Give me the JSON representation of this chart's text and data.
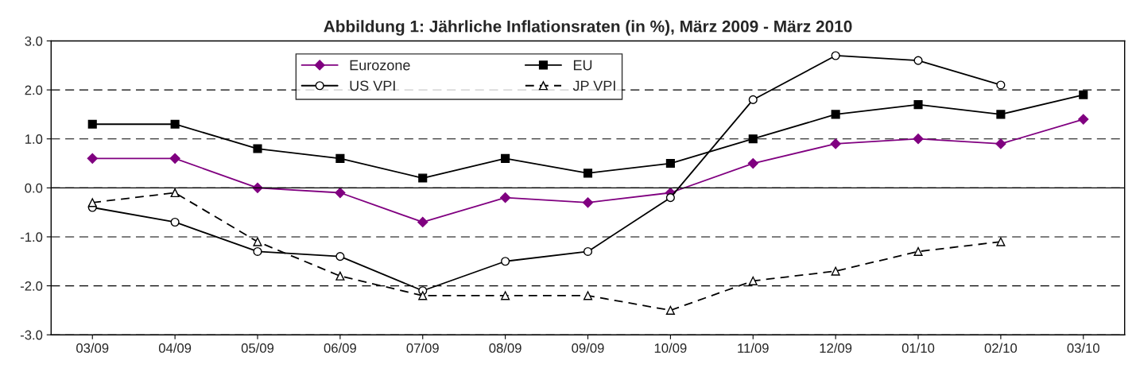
{
  "chart_data": {
    "type": "line",
    "title": "Abbildung 1: Jährliche Inflationsraten (in %), März 2009 - März 2010",
    "categories": [
      "03/09",
      "04/09",
      "05/09",
      "06/09",
      "07/09",
      "08/09",
      "09/09",
      "10/09",
      "11/09",
      "12/09",
      "01/10",
      "02/10",
      "03/10"
    ],
    "series": [
      {
        "name": "Eurozone",
        "color": "#800080",
        "marker": "diamond",
        "line_style": "solid",
        "values": [
          0.6,
          0.6,
          0.0,
          -0.1,
          -0.7,
          -0.2,
          -0.3,
          -0.1,
          0.5,
          0.9,
          1.0,
          0.9,
          1.4
        ]
      },
      {
        "name": "EU",
        "color": "#000000",
        "marker": "square",
        "line_style": "solid",
        "values": [
          1.3,
          1.3,
          0.8,
          0.6,
          0.2,
          0.6,
          0.3,
          0.5,
          1.0,
          1.5,
          1.7,
          1.5,
          1.9
        ]
      },
      {
        "name": "US VPI",
        "color": "#000000",
        "marker": "circle",
        "line_style": "solid",
        "values": [
          -0.4,
          -0.7,
          -1.3,
          -1.4,
          -2.1,
          -1.5,
          -1.3,
          -0.2,
          1.8,
          2.7,
          2.6,
          2.1,
          null
        ]
      },
      {
        "name": "JP VPI",
        "color": "#000000",
        "marker": "triangle",
        "line_style": "dashed",
        "values": [
          -0.3,
          -0.1,
          -1.1,
          -1.8,
          -2.2,
          -2.2,
          -2.2,
          -2.5,
          -1.9,
          -1.7,
          -1.3,
          -1.1,
          null
        ]
      }
    ],
    "ylim": [
      -3,
      3
    ],
    "yticks": [
      {
        "value": -3,
        "label": "-3.0"
      },
      {
        "value": -2,
        "label": "-2.0"
      },
      {
        "value": -1,
        "label": "-1.0"
      },
      {
        "value": 0,
        "label": "0.0"
      },
      {
        "value": 1,
        "label": "1.0"
      },
      {
        "value": 2,
        "label": "2.0"
      },
      {
        "value": 3,
        "label": "3.0"
      }
    ],
    "grid": "y",
    "legend": "top"
  }
}
